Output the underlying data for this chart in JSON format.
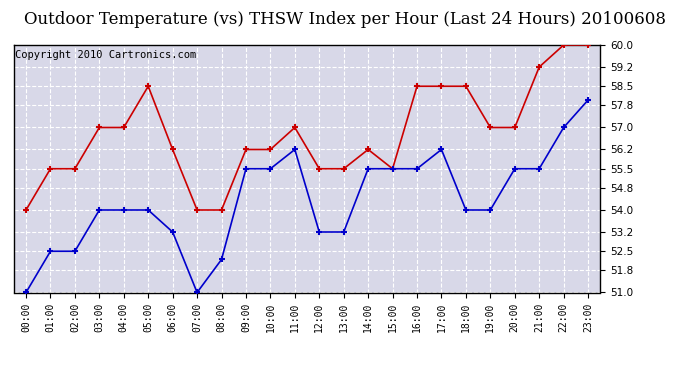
{
  "title": "Outdoor Temperature (vs) THSW Index per Hour (Last 24 Hours) 20100608",
  "copyright": "Copyright 2010 Cartronics.com",
  "hours": [
    "00:00",
    "01:00",
    "02:00",
    "03:00",
    "04:00",
    "05:00",
    "06:00",
    "07:00",
    "08:00",
    "09:00",
    "10:00",
    "11:00",
    "12:00",
    "13:00",
    "14:00",
    "15:00",
    "16:00",
    "17:00",
    "18:00",
    "19:00",
    "20:00",
    "21:00",
    "22:00",
    "23:00"
  ],
  "blue_data": [
    51.0,
    52.5,
    52.5,
    54.0,
    54.0,
    54.0,
    53.2,
    51.0,
    52.2,
    55.5,
    55.5,
    56.2,
    53.2,
    53.2,
    55.5,
    55.5,
    55.5,
    56.2,
    54.0,
    54.0,
    55.5,
    55.5,
    57.0,
    58.0
  ],
  "red_data": [
    54.0,
    55.5,
    55.5,
    57.0,
    57.0,
    58.5,
    56.2,
    54.0,
    54.0,
    56.2,
    56.2,
    57.0,
    55.5,
    55.5,
    56.2,
    55.5,
    58.5,
    58.5,
    58.5,
    57.0,
    57.0,
    59.2,
    60.0,
    60.0
  ],
  "ylim": [
    51.0,
    60.0
  ],
  "yticks": [
    51.0,
    51.8,
    52.5,
    53.2,
    54.0,
    54.8,
    55.5,
    56.2,
    57.0,
    57.8,
    58.5,
    59.2,
    60.0
  ],
  "blue_color": "#0000cc",
  "red_color": "#cc0000",
  "fig_bg_color": "#ffffff",
  "plot_bg_color": "#d8d8e8",
  "grid_color": "#c0c0c0",
  "title_fontsize": 12,
  "copyright_fontsize": 7.5
}
